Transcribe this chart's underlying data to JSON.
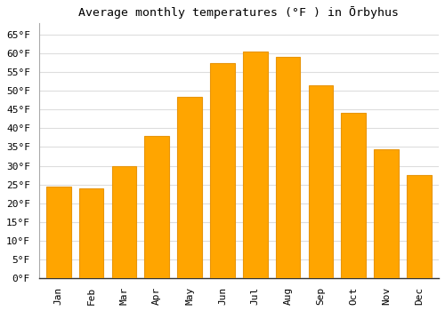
{
  "title": "Average monthly temperatures (°F ) in Ōrbyhus",
  "months": [
    "Jan",
    "Feb",
    "Mar",
    "Apr",
    "May",
    "Jun",
    "Jul",
    "Aug",
    "Sep",
    "Oct",
    "Nov",
    "Dec"
  ],
  "values": [
    24.5,
    24.0,
    30.0,
    38.0,
    48.5,
    57.5,
    60.5,
    59.0,
    51.5,
    44.0,
    34.5,
    27.5
  ],
  "bar_color": "#FFA500",
  "bar_edge_color": "#E8950A",
  "ylim": [
    0,
    68
  ],
  "yticks": [
    0,
    5,
    10,
    15,
    20,
    25,
    30,
    35,
    40,
    45,
    50,
    55,
    60,
    65
  ],
  "background_color": "#ffffff",
  "grid_color": "#dddddd",
  "title_fontsize": 9.5,
  "tick_fontsize": 8,
  "font_family": "monospace"
}
